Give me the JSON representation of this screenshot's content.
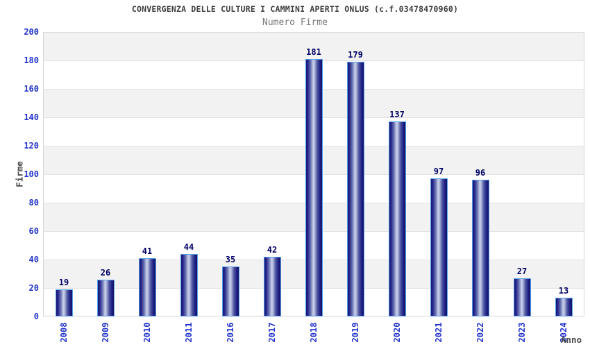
{
  "chart_data": {
    "type": "bar",
    "title": "CONVERGENZA DELLE CULTURE I CAMMINI APERTI ONLUS (c.f.03478470960)",
    "subtitle": "Numero Firme",
    "xlabel": "Anno",
    "ylabel": "Firme",
    "categories": [
      "2008",
      "2009",
      "2010",
      "2011",
      "2016",
      "2017",
      "2018",
      "2019",
      "2020",
      "2021",
      "2022",
      "2023",
      "2024"
    ],
    "values": [
      19,
      26,
      41,
      44,
      35,
      42,
      181,
      179,
      137,
      97,
      96,
      27,
      13
    ],
    "ylim": [
      0,
      200
    ],
    "yticks": [
      0,
      20,
      40,
      60,
      80,
      100,
      120,
      140,
      160,
      180,
      200
    ],
    "grid": "horizontal alternating bands every 20 units",
    "legend": "none",
    "value_labels": "above each bar",
    "x_tick_rotation": -90,
    "colors": {
      "tick_label": "#2233cc",
      "value_label": "#000066",
      "title": "#3d3d3d",
      "subtitle": "#7a7a7a",
      "axis_title": "#454545",
      "band_gray": "#f2f2f2",
      "band_white": "#ffffff",
      "gridline": "#e2e2e2",
      "plot_border": "#d5d5d5",
      "bar_border": "#55a0e8",
      "bar_edge": "#181874",
      "bar_center": "#ccd2ec"
    }
  }
}
